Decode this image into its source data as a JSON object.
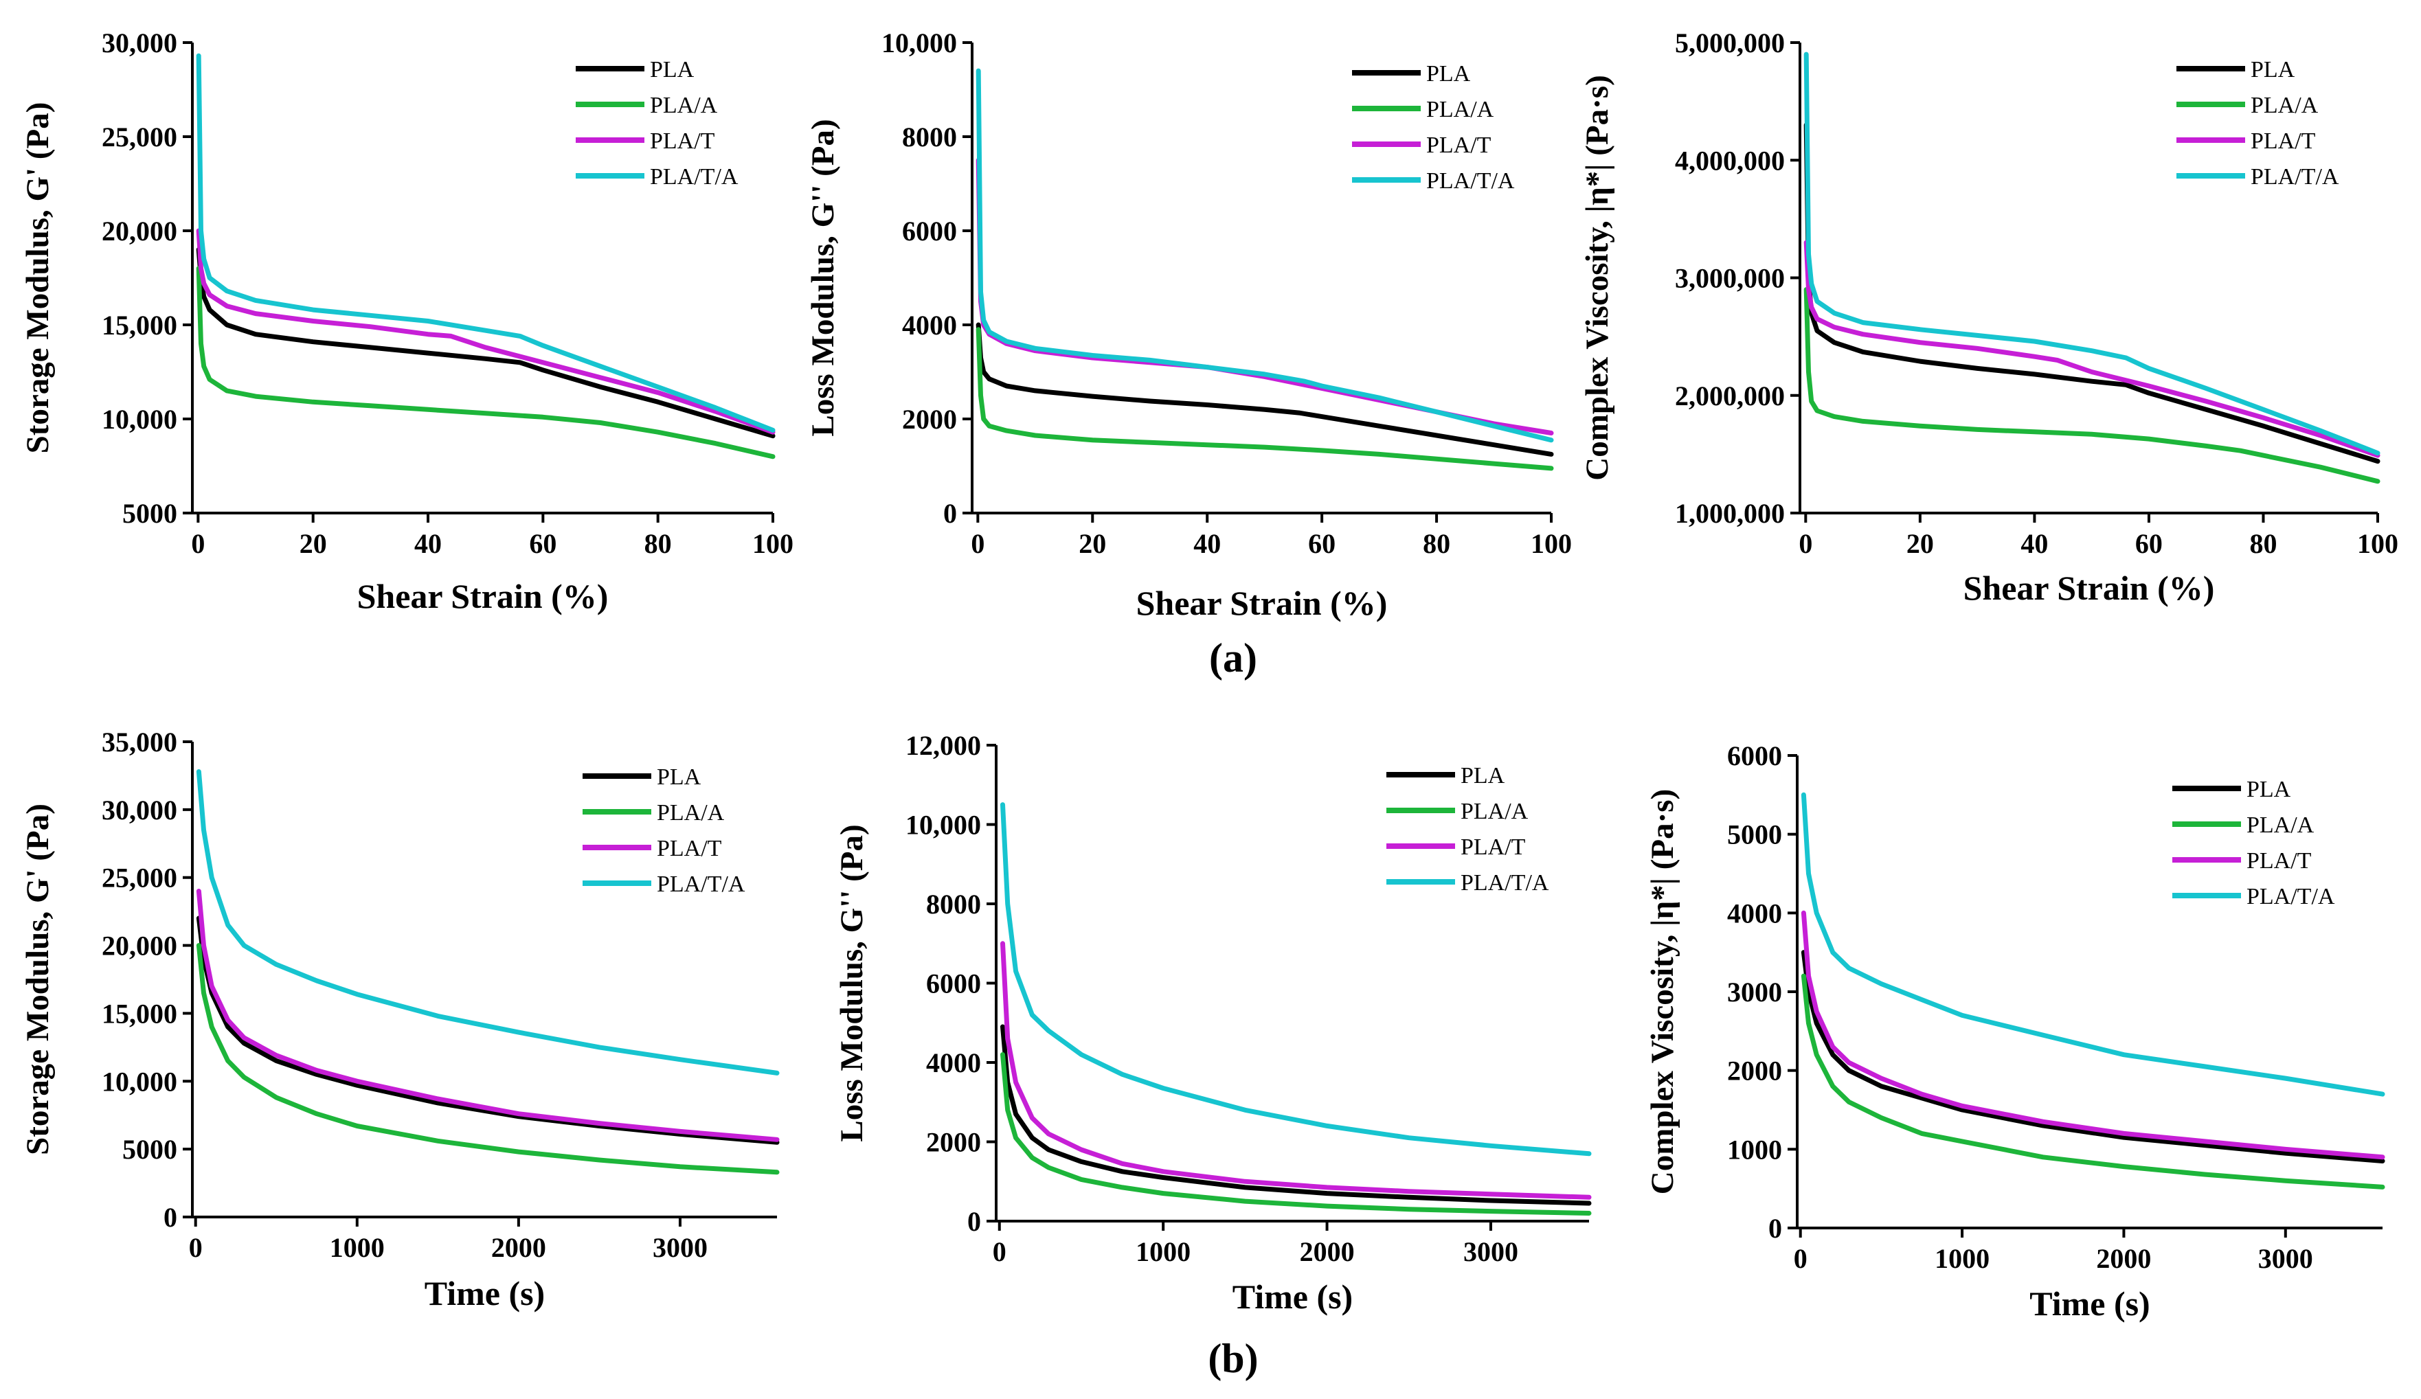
{
  "colors": {
    "PLA": "#000000",
    "PLA/A": "#1db53a",
    "PLA/T": "#c61fd6",
    "PLA/T/A": "#17c4cf"
  },
  "captions": [
    "(a)",
    "(b)"
  ],
  "chart_data": [
    {
      "type": "line",
      "panel": "a1",
      "xlabel": "Shear Strain (%)",
      "ylabel": "Storage Modulus, G' (Pa)",
      "xlim": [
        -1,
        100
      ],
      "ylim": [
        5000,
        30000
      ],
      "xticks": [
        0,
        20,
        40,
        60,
        80,
        100
      ],
      "yticks": [
        5000,
        10000,
        15000,
        20000,
        25000,
        30000
      ],
      "ytick_labels": [
        "5000",
        "10,000",
        "15,000",
        "20,000",
        "25,000",
        "30,000"
      ],
      "legend": [
        "PLA",
        "PLA/A",
        "PLA/T",
        "PLA/T/A"
      ],
      "series": [
        {
          "name": "PLA",
          "x": [
            0.1,
            0.5,
            1,
            2,
            5,
            10,
            20,
            30,
            40,
            50,
            56,
            60,
            70,
            80,
            90,
            100
          ],
          "y": [
            19000,
            17500,
            16500,
            15800,
            15000,
            14500,
            14100,
            13800,
            13500,
            13200,
            13000,
            12600,
            11700,
            10900,
            10000,
            9100
          ]
        },
        {
          "name": "PLA/A",
          "x": [
            0.1,
            0.5,
            1,
            2,
            5,
            10,
            20,
            30,
            40,
            50,
            60,
            70,
            76,
            80,
            90,
            100
          ],
          "y": [
            18000,
            14000,
            12800,
            12100,
            11500,
            11200,
            10900,
            10700,
            10500,
            10300,
            10100,
            9800,
            9500,
            9300,
            8700,
            8000
          ]
        },
        {
          "name": "PLA/T",
          "x": [
            0.1,
            0.5,
            1,
            2,
            5,
            10,
            20,
            30,
            40,
            44,
            50,
            60,
            70,
            80,
            90,
            100
          ],
          "y": [
            20000,
            18000,
            17200,
            16600,
            16000,
            15600,
            15200,
            14900,
            14500,
            14400,
            13800,
            13000,
            12200,
            11400,
            10400,
            9300
          ]
        },
        {
          "name": "PLA/T/A",
          "x": [
            0.1,
            0.5,
            1,
            2,
            5,
            10,
            20,
            30,
            40,
            50,
            56,
            60,
            70,
            80,
            90,
            100
          ],
          "y": [
            29300,
            20000,
            18500,
            17500,
            16800,
            16300,
            15800,
            15500,
            15200,
            14700,
            14400,
            13900,
            12800,
            11700,
            10600,
            9400
          ]
        }
      ]
    },
    {
      "type": "line",
      "panel": "a2",
      "xlabel": "Shear Strain (%)",
      "ylabel": "Loss Modulus, G'' (Pa)",
      "xlim": [
        -1,
        100
      ],
      "ylim": [
        0,
        10000
      ],
      "xticks": [
        0,
        20,
        40,
        60,
        80,
        100
      ],
      "yticks": [
        0,
        2000,
        4000,
        6000,
        8000,
        10000
      ],
      "ytick_labels": [
        "0",
        "2000",
        "4000",
        "6000",
        "8000",
        "10,000"
      ],
      "legend": [
        "PLA",
        "PLA/A",
        "PLA/T",
        "PLA/T/A"
      ],
      "series": [
        {
          "name": "PLA",
          "x": [
            0.1,
            0.5,
            1,
            2,
            5,
            10,
            20,
            30,
            40,
            50,
            56,
            60,
            70,
            80,
            90,
            100
          ],
          "y": [
            4000,
            3300,
            3000,
            2850,
            2700,
            2600,
            2480,
            2380,
            2300,
            2200,
            2130,
            2050,
            1850,
            1650,
            1450,
            1250
          ]
        },
        {
          "name": "PLA/A",
          "x": [
            0.1,
            0.5,
            1,
            2,
            5,
            10,
            20,
            30,
            40,
            50,
            60,
            70,
            80,
            90,
            100
          ],
          "y": [
            3900,
            2500,
            2000,
            1850,
            1750,
            1650,
            1550,
            1500,
            1450,
            1400,
            1330,
            1250,
            1150,
            1050,
            950
          ]
        },
        {
          "name": "PLA/T",
          "x": [
            0.1,
            0.5,
            1,
            2,
            5,
            10,
            20,
            30,
            40,
            50,
            60,
            70,
            80,
            90,
            100
          ],
          "y": [
            7500,
            4500,
            4000,
            3800,
            3600,
            3450,
            3300,
            3200,
            3100,
            2900,
            2650,
            2400,
            2150,
            1900,
            1700
          ]
        },
        {
          "name": "PLA/T/A",
          "x": [
            0.1,
            0.5,
            1,
            2,
            5,
            10,
            20,
            30,
            40,
            50,
            57,
            60,
            70,
            80,
            90,
            100
          ],
          "y": [
            9400,
            4700,
            4100,
            3850,
            3650,
            3500,
            3350,
            3250,
            3100,
            2950,
            2800,
            2700,
            2450,
            2150,
            1850,
            1550
          ]
        }
      ]
    },
    {
      "type": "line",
      "panel": "a3",
      "xlabel": "Shear Strain (%)",
      "ylabel": "Complex Viscosity, |η*| (Pa·s)",
      "xlim": [
        -1,
        100
      ],
      "ylim": [
        1000000,
        5000000
      ],
      "xticks": [
        0,
        20,
        40,
        60,
        80,
        100
      ],
      "yticks": [
        1000000,
        2000000,
        3000000,
        4000000,
        5000000
      ],
      "ytick_labels": [
        "1,000,000",
        "2,000,000",
        "3,000,000",
        "4,000,000",
        "5,000,000"
      ],
      "legend": [
        "PLA",
        "PLA/A",
        "PLA/T",
        "PLA/T/A"
      ],
      "series": [
        {
          "name": "PLA",
          "x": [
            0.1,
            0.5,
            1,
            2,
            5,
            10,
            20,
            30,
            40,
            50,
            56,
            60,
            70,
            80,
            90,
            100
          ],
          "y": [
            4300000,
            3000000,
            2700000,
            2550000,
            2450000,
            2370000,
            2290000,
            2230000,
            2180000,
            2120000,
            2090000,
            2020000,
            1880000,
            1740000,
            1590000,
            1440000
          ]
        },
        {
          "name": "PLA/A",
          "x": [
            0.1,
            0.5,
            1,
            2,
            5,
            10,
            20,
            30,
            40,
            50,
            60,
            70,
            76,
            80,
            90,
            100
          ],
          "y": [
            2900000,
            2200000,
            1950000,
            1870000,
            1820000,
            1780000,
            1740000,
            1710000,
            1690000,
            1670000,
            1630000,
            1570000,
            1530000,
            1490000,
            1390000,
            1270000
          ]
        },
        {
          "name": "PLA/T",
          "x": [
            0.1,
            0.5,
            1,
            2,
            5,
            10,
            20,
            30,
            40,
            44,
            50,
            60,
            70,
            80,
            90,
            100
          ],
          "y": [
            3300000,
            2900000,
            2750000,
            2650000,
            2580000,
            2520000,
            2450000,
            2400000,
            2330000,
            2300000,
            2200000,
            2080000,
            1950000,
            1810000,
            1660000,
            1490000
          ]
        },
        {
          "name": "PLA/T/A",
          "x": [
            0.1,
            0.5,
            1,
            2,
            5,
            10,
            20,
            30,
            40,
            50,
            56,
            60,
            70,
            80,
            90,
            100
          ],
          "y": [
            4900000,
            3200000,
            2950000,
            2800000,
            2700000,
            2620000,
            2560000,
            2510000,
            2460000,
            2380000,
            2320000,
            2230000,
            2060000,
            1880000,
            1700000,
            1510000
          ]
        }
      ]
    },
    {
      "type": "line",
      "panel": "b1",
      "xlabel": "Time (s)",
      "ylabel": "Storage Modulus, G' (Pa)",
      "xlim": [
        -20,
        3600
      ],
      "ylim": [
        0,
        35000
      ],
      "xticks": [
        0,
        1000,
        2000,
        3000
      ],
      "yticks": [
        0,
        5000,
        10000,
        15000,
        20000,
        25000,
        30000,
        35000
      ],
      "ytick_labels": [
        "0",
        "5000",
        "10,000",
        "15,000",
        "20,000",
        "25,000",
        "30,000",
        "35,000"
      ],
      "legend": [
        "PLA",
        "PLA/A",
        "PLA/T",
        "PLA/T/A"
      ],
      "series": [
        {
          "name": "PLA",
          "x": [
            20,
            50,
            100,
            200,
            300,
            500,
            750,
            1000,
            1500,
            2000,
            2500,
            3000,
            3600
          ],
          "y": [
            22000,
            19000,
            16500,
            14000,
            12800,
            11500,
            10500,
            9700,
            8400,
            7400,
            6700,
            6100,
            5500
          ]
        },
        {
          "name": "PLA/A",
          "x": [
            20,
            50,
            100,
            200,
            300,
            500,
            750,
            1000,
            1500,
            2000,
            2500,
            3000,
            3600
          ],
          "y": [
            20000,
            16500,
            14000,
            11500,
            10300,
            8800,
            7600,
            6700,
            5600,
            4800,
            4200,
            3700,
            3300
          ]
        },
        {
          "name": "PLA/T",
          "x": [
            20,
            50,
            100,
            200,
            300,
            500,
            750,
            1000,
            1500,
            2000,
            2500,
            3000,
            3600
          ],
          "y": [
            24000,
            20000,
            17000,
            14500,
            13200,
            11900,
            10800,
            10000,
            8700,
            7600,
            6900,
            6300,
            5700
          ]
        },
        {
          "name": "PLA/T/A",
          "x": [
            20,
            50,
            100,
            200,
            300,
            500,
            750,
            1000,
            1500,
            2000,
            2500,
            3000,
            3600
          ],
          "y": [
            32800,
            28500,
            25000,
            21500,
            20000,
            18600,
            17400,
            16400,
            14800,
            13600,
            12500,
            11600,
            10600
          ]
        }
      ]
    },
    {
      "type": "line",
      "panel": "b2",
      "xlabel": "Time (s)",
      "ylabel": "Loss Modulus, G'' (Pa)",
      "xlim": [
        -20,
        3600
      ],
      "ylim": [
        0,
        12000
      ],
      "xticks": [
        0,
        1000,
        2000,
        3000
      ],
      "yticks": [
        0,
        2000,
        4000,
        6000,
        8000,
        10000,
        12000
      ],
      "ytick_labels": [
        "0",
        "2000",
        "4000",
        "6000",
        "8000",
        "10,000",
        "12,000"
      ],
      "legend": [
        "PLA",
        "PLA/A",
        "PLA/T",
        "PLA/T/A"
      ],
      "series": [
        {
          "name": "PLA",
          "x": [
            20,
            50,
            100,
            200,
            300,
            500,
            750,
            1000,
            1500,
            2000,
            2500,
            3000,
            3600
          ],
          "y": [
            4900,
            3500,
            2700,
            2100,
            1800,
            1500,
            1250,
            1100,
            850,
            700,
            600,
            520,
            450
          ]
        },
        {
          "name": "PLA/A",
          "x": [
            20,
            50,
            100,
            200,
            300,
            500,
            750,
            1000,
            1500,
            2000,
            2500,
            3000,
            3600
          ],
          "y": [
            4200,
            2800,
            2100,
            1600,
            1350,
            1050,
            850,
            700,
            500,
            380,
            300,
            250,
            200
          ]
        },
        {
          "name": "PLA/T",
          "x": [
            20,
            50,
            100,
            200,
            300,
            500,
            750,
            1000,
            1500,
            2000,
            2500,
            3000,
            3600
          ],
          "y": [
            7000,
            4600,
            3500,
            2600,
            2200,
            1800,
            1450,
            1250,
            1000,
            850,
            750,
            680,
            600
          ]
        },
        {
          "name": "PLA/T/A",
          "x": [
            20,
            50,
            100,
            200,
            300,
            500,
            750,
            1000,
            1500,
            2000,
            2500,
            3000,
            3600
          ],
          "y": [
            10500,
            8000,
            6300,
            5200,
            4800,
            4200,
            3700,
            3350,
            2800,
            2400,
            2100,
            1900,
            1700
          ]
        }
      ]
    },
    {
      "type": "line",
      "panel": "b3",
      "xlabel": "Time (s)",
      "ylabel": "Complex Viscosity, |η*| (Pa·s)",
      "xlim": [
        -20,
        3600
      ],
      "ylim": [
        0,
        6000
      ],
      "xticks": [
        0,
        1000,
        2000,
        3000
      ],
      "yticks": [
        0,
        1000,
        2000,
        3000,
        4000,
        5000,
        6000
      ],
      "ytick_labels": [
        "0",
        "1000",
        "2000",
        "3000",
        "4000",
        "5000",
        "6000"
      ],
      "legend": [
        "PLA",
        "PLA/A",
        "PLA/T",
        "PLA/T/A"
      ],
      "series": [
        {
          "name": "PLA",
          "x": [
            20,
            50,
            100,
            200,
            300,
            500,
            750,
            1000,
            1500,
            2000,
            2500,
            3000,
            3600
          ],
          "y": [
            3500,
            3000,
            2600,
            2200,
            2000,
            1800,
            1650,
            1500,
            1300,
            1150,
            1050,
            950,
            850
          ]
        },
        {
          "name": "PLA/A",
          "x": [
            20,
            50,
            100,
            200,
            300,
            500,
            750,
            1000,
            1500,
            2000,
            2500,
            3000,
            3600
          ],
          "y": [
            3200,
            2600,
            2200,
            1800,
            1600,
            1400,
            1200,
            1100,
            900,
            780,
            680,
            600,
            520
          ]
        },
        {
          "name": "PLA/T",
          "x": [
            20,
            50,
            100,
            200,
            300,
            500,
            750,
            1000,
            1500,
            2000,
            2500,
            3000,
            3600
          ],
          "y": [
            4000,
            3200,
            2750,
            2300,
            2100,
            1900,
            1700,
            1550,
            1350,
            1200,
            1100,
            1000,
            900
          ]
        },
        {
          "name": "PLA/T/A",
          "x": [
            20,
            50,
            100,
            200,
            300,
            500,
            750,
            1000,
            1500,
            2000,
            2500,
            3000,
            3600
          ],
          "y": [
            5500,
            4500,
            4000,
            3500,
            3300,
            3100,
            2900,
            2700,
            2450,
            2200,
            2050,
            1900,
            1700
          ]
        }
      ]
    }
  ]
}
